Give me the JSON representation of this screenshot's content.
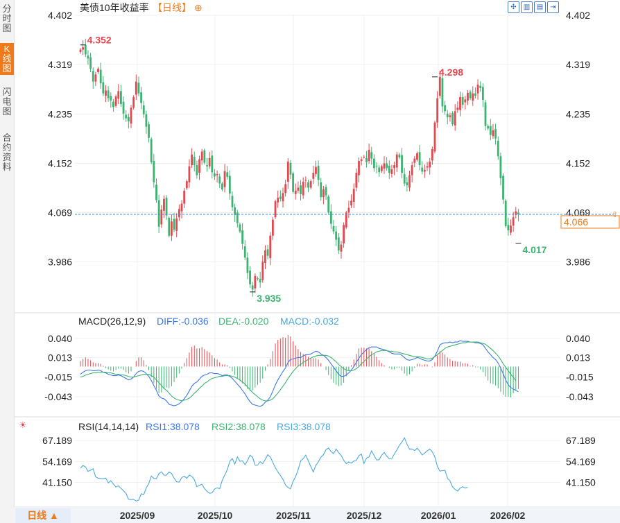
{
  "sidebar": {
    "tabs": [
      {
        "label": "分时图",
        "active": false
      },
      {
        "label": "K线图",
        "active": true
      },
      {
        "label": "闪电图",
        "active": false
      },
      {
        "label": "合约资料",
        "active": false
      }
    ]
  },
  "header": {
    "title": "美债10年收益率",
    "period_tag": "【日线】",
    "add_symbol": "⊕",
    "title_color": "#222222",
    "accent_color": "#f07a1a"
  },
  "toolbar": {
    "icons": [
      "crosshair-icon",
      "bar-style-icon",
      "line-style-icon",
      "forward-icon"
    ]
  },
  "period_button": {
    "label": "日线 ▲"
  },
  "chart_data": [
    {
      "type": "candlestick",
      "title": "美债10年收益率",
      "y_ticks": [
        "4.402",
        "4.319",
        "4.235",
        "4.152",
        "4.069",
        "3.986"
      ],
      "ylim": [
        3.936,
        4.402
      ],
      "x_ticks": [
        "2025/09",
        "2025/10",
        "2025/11",
        "2025/12",
        "2026/01",
        "2026/02"
      ],
      "last_price": "4.066",
      "annotations": [
        {
          "label": "4.352",
          "kind": "high"
        },
        {
          "label": "3.935",
          "kind": "low"
        },
        {
          "label": "4.298",
          "kind": "high"
        },
        {
          "label": "4.017",
          "kind": "low"
        }
      ],
      "up_color": "#e4484f",
      "down_color": "#3cb371",
      "close": [
        4.344,
        4.348,
        4.336,
        4.329,
        4.312,
        4.29,
        4.302,
        4.312,
        4.287,
        4.27,
        4.275,
        4.262,
        4.258,
        4.247,
        4.265,
        4.274,
        4.252,
        4.236,
        4.228,
        4.223,
        4.246,
        4.264,
        4.29,
        4.27,
        4.254,
        4.235,
        4.214,
        4.195,
        4.154,
        4.12,
        4.09,
        4.045,
        4.074,
        4.092,
        4.064,
        4.03,
        4.054,
        4.04,
        4.059,
        4.075,
        4.084,
        4.106,
        4.122,
        4.147,
        4.167,
        4.149,
        4.132,
        4.159,
        4.172,
        4.153,
        4.147,
        4.161,
        4.137,
        4.13,
        4.134,
        4.118,
        4.108,
        4.139,
        4.129,
        4.101,
        4.078,
        4.065,
        4.051,
        4.037,
        4.016,
        3.993,
        3.967,
        3.948,
        3.939,
        3.962,
        3.957,
        3.951,
        3.986,
        4.005,
        3.996,
        4.03,
        4.057,
        4.088,
        4.094,
        4.092,
        4.102,
        4.117,
        4.155,
        4.133,
        4.104,
        4.106,
        4.111,
        4.1,
        4.121,
        4.124,
        4.111,
        4.122,
        4.136,
        4.146,
        4.124,
        4.095,
        4.108,
        4.098,
        4.069,
        4.05,
        4.037,
        4.023,
        4.005,
        4.015,
        4.048,
        4.069,
        4.077,
        4.089,
        4.109,
        4.136,
        4.156,
        4.159,
        4.163,
        4.154,
        4.175,
        4.16,
        4.144,
        4.147,
        4.137,
        4.147,
        4.152,
        4.144,
        4.136,
        4.142,
        4.149,
        4.167,
        4.162,
        4.136,
        4.118,
        4.115,
        4.132,
        4.149,
        4.16,
        4.169,
        4.149,
        4.138,
        4.141,
        4.147,
        4.155,
        4.176,
        4.221,
        4.262,
        4.298,
        4.248,
        4.24,
        4.23,
        4.233,
        4.218,
        4.24,
        4.246,
        4.264,
        4.251,
        4.26,
        4.271,
        4.262,
        4.27,
        4.266,
        4.285,
        4.279,
        4.259,
        4.215,
        4.211,
        4.2,
        4.208,
        4.194,
        4.164,
        4.127,
        4.091,
        4.046,
        4.039,
        4.047,
        4.061,
        4.071,
        4.066
      ]
    },
    {
      "type": "bar+line",
      "title": "MACD(26,12,9)",
      "series": [
        {
          "name": "DIFF:-0.036",
          "color": "#3b78e7"
        },
        {
          "name": "DEA:-0.020",
          "color": "#3cb371"
        },
        {
          "name": "MACD:-0.032",
          "color": "#4aa8e0"
        }
      ],
      "y_ticks": [
        "0.040",
        "0.013",
        "-0.015",
        "-0.043"
      ],
      "ylim": [
        -0.055,
        0.05
      ],
      "diff": [
        -0.011,
        -0.008,
        -0.006,
        -0.005,
        -0.005,
        -0.006,
        -0.006,
        -0.005,
        -0.006,
        -0.008,
        -0.009,
        -0.011,
        -0.012,
        -0.013,
        -0.013,
        -0.012,
        -0.013,
        -0.015,
        -0.017,
        -0.019,
        -0.018,
        -0.015,
        -0.01,
        -0.007,
        -0.006,
        -0.007,
        -0.01,
        -0.014,
        -0.02,
        -0.027,
        -0.034,
        -0.042,
        -0.045,
        -0.046,
        -0.049,
        -0.054,
        -0.055,
        -0.056,
        -0.055,
        -0.053,
        -0.05,
        -0.046,
        -0.041,
        -0.035,
        -0.028,
        -0.024,
        -0.022,
        -0.018,
        -0.014,
        -0.012,
        -0.011,
        -0.009,
        -0.009,
        -0.01,
        -0.01,
        -0.011,
        -0.013,
        -0.012,
        -0.012,
        -0.014,
        -0.017,
        -0.021,
        -0.025,
        -0.029,
        -0.034,
        -0.039,
        -0.045,
        -0.05,
        -0.054,
        -0.055,
        -0.056,
        -0.057,
        -0.055,
        -0.051,
        -0.048,
        -0.043,
        -0.035,
        -0.026,
        -0.019,
        -0.013,
        -0.007,
        -0.002,
        0.006,
        0.01,
        0.011,
        0.012,
        0.013,
        0.013,
        0.015,
        0.017,
        0.017,
        0.018,
        0.02,
        0.022,
        0.021,
        0.018,
        0.016,
        0.013,
        0.009,
        0.004,
        -0.001,
        -0.006,
        -0.011,
        -0.014,
        -0.014,
        -0.012,
        -0.009,
        -0.005,
        0.0,
        0.006,
        0.012,
        0.017,
        0.021,
        0.024,
        0.027,
        0.028,
        0.028,
        0.028,
        0.026,
        0.025,
        0.024,
        0.023,
        0.021,
        0.019,
        0.018,
        0.018,
        0.018,
        0.016,
        0.013,
        0.01,
        0.009,
        0.01,
        0.011,
        0.013,
        0.012,
        0.01,
        0.009,
        0.008,
        0.008,
        0.01,
        0.015,
        0.022,
        0.031,
        0.033,
        0.034,
        0.034,
        0.035,
        0.034,
        0.035,
        0.035,
        0.037,
        0.036,
        0.036,
        0.036,
        0.035,
        0.035,
        0.034,
        0.034,
        0.033,
        0.031,
        0.026,
        0.021,
        0.017,
        0.013,
        0.01,
        0.005,
        -0.002,
        -0.01,
        -0.019,
        -0.026,
        -0.03,
        -0.032,
        -0.034,
        -0.036
      ],
      "dea": [
        -0.015,
        -0.014,
        -0.012,
        -0.011,
        -0.01,
        -0.009,
        -0.009,
        -0.008,
        -0.008,
        -0.008,
        -0.008,
        -0.009,
        -0.009,
        -0.01,
        -0.011,
        -0.011,
        -0.012,
        -0.012,
        -0.013,
        -0.014,
        -0.015,
        -0.015,
        -0.014,
        -0.013,
        -0.012,
        -0.011,
        -0.011,
        -0.011,
        -0.013,
        -0.015,
        -0.019,
        -0.023,
        -0.027,
        -0.031,
        -0.034,
        -0.038,
        -0.042,
        -0.045,
        -0.047,
        -0.048,
        -0.049,
        -0.048,
        -0.047,
        -0.045,
        -0.042,
        -0.038,
        -0.035,
        -0.031,
        -0.028,
        -0.024,
        -0.022,
        -0.019,
        -0.017,
        -0.016,
        -0.015,
        -0.014,
        -0.014,
        -0.013,
        -0.013,
        -0.013,
        -0.014,
        -0.015,
        -0.017,
        -0.019,
        -0.022,
        -0.025,
        -0.029,
        -0.033,
        -0.037,
        -0.04,
        -0.043,
        -0.046,
        -0.048,
        -0.049,
        -0.049,
        -0.048,
        -0.046,
        -0.042,
        -0.038,
        -0.033,
        -0.028,
        -0.023,
        -0.017,
        -0.012,
        -0.007,
        -0.003,
        0.001,
        0.003,
        0.006,
        0.008,
        0.01,
        0.012,
        0.014,
        0.015,
        0.016,
        0.016,
        0.016,
        0.016,
        0.015,
        0.013,
        0.01,
        0.007,
        0.003,
        -0.0,
        -0.003,
        -0.005,
        -0.006,
        -0.006,
        -0.005,
        -0.003,
        -0.0,
        0.004,
        0.007,
        0.011,
        0.014,
        0.017,
        0.019,
        0.021,
        0.022,
        0.023,
        0.023,
        0.023,
        0.022,
        0.022,
        0.021,
        0.021,
        0.02,
        0.019,
        0.018,
        0.017,
        0.016,
        0.015,
        0.014,
        0.014,
        0.014,
        0.013,
        0.012,
        0.011,
        0.011,
        0.012,
        0.014,
        0.017,
        0.02,
        0.023,
        0.026,
        0.028,
        0.029,
        0.03,
        0.031,
        0.032,
        0.033,
        0.034,
        0.034,
        0.035,
        0.035,
        0.035,
        0.035,
        0.035,
        0.034,
        0.033,
        0.032,
        0.029,
        0.026,
        0.023,
        0.019,
        0.015,
        0.01,
        0.004,
        -0.001,
        -0.006,
        -0.011,
        -0.015,
        -0.02
      ],
      "macd": [
        0.008,
        0.011,
        0.013,
        0.011,
        0.009,
        0.006,
        0.005,
        0.005,
        0.004,
        0.001,
        -0.002,
        -0.004,
        -0.006,
        -0.007,
        -0.005,
        -0.003,
        -0.003,
        -0.005,
        -0.008,
        -0.01,
        -0.007,
        0.0,
        0.008,
        0.013,
        0.013,
        0.009,
        0.002,
        -0.005,
        -0.015,
        -0.024,
        -0.032,
        -0.038,
        -0.037,
        -0.032,
        -0.03,
        -0.031,
        -0.028,
        -0.022,
        -0.016,
        -0.01,
        -0.003,
        0.005,
        0.012,
        0.02,
        0.028,
        0.03,
        0.026,
        0.026,
        0.028,
        0.025,
        0.022,
        0.02,
        0.016,
        0.012,
        0.01,
        0.006,
        0.003,
        0.003,
        0.002,
        -0.002,
        -0.007,
        -0.012,
        -0.017,
        -0.021,
        -0.024,
        -0.028,
        -0.032,
        -0.035,
        -0.034,
        -0.03,
        -0.026,
        -0.023,
        -0.017,
        -0.006,
        0.003,
        0.011,
        0.022,
        0.033,
        0.038,
        0.04,
        0.042,
        0.041,
        0.045,
        0.043,
        0.036,
        0.03,
        0.025,
        0.021,
        0.018,
        0.017,
        0.014,
        0.012,
        0.012,
        0.012,
        0.01,
        0.005,
        0.0,
        -0.005,
        -0.012,
        -0.018,
        -0.023,
        -0.026,
        -0.028,
        -0.027,
        -0.023,
        -0.014,
        -0.006,
        0.002,
        0.01,
        0.018,
        0.026,
        0.027,
        0.027,
        0.026,
        0.026,
        0.022,
        0.018,
        0.014,
        0.009,
        0.005,
        0.002,
        0.0,
        -0.002,
        -0.004,
        -0.004,
        -0.002,
        -0.002,
        -0.006,
        -0.01,
        -0.013,
        -0.011,
        -0.007,
        -0.002,
        0.004,
        0.004,
        0.002,
        0.003,
        0.003,
        0.0,
        -0.001,
        0.006,
        0.016,
        0.022,
        0.02,
        0.017,
        0.013,
        0.011,
        0.008,
        0.008,
        0.007,
        0.007,
        0.005,
        0.005,
        0.004,
        0.001,
        0.002,
        -0.001,
        -0.001,
        -0.004,
        -0.008,
        -0.014,
        -0.02,
        -0.024,
        -0.025,
        -0.027,
        -0.031,
        -0.036,
        -0.04,
        -0.043,
        -0.043,
        -0.044,
        -0.038,
        -0.034,
        -0.032
      ]
    },
    {
      "type": "line",
      "title": "RSI(14,14,14)",
      "series": [
        {
          "name": "RSI1:38.078",
          "color": "#3b78e7"
        },
        {
          "name": "RSI2:38.078",
          "color": "#3cb371"
        },
        {
          "name": "RSI3:38.078",
          "color": "#4aa8e0"
        }
      ],
      "y_ticks": [
        "67.189",
        "54.169",
        "41.150"
      ],
      "ylim": [
        28,
        72
      ],
      "rsi": [
        50.0,
        51.7,
        50.8,
        48.0,
        48.8,
        49.6,
        44.6,
        43.8,
        43.5,
        43.5,
        43.9,
        40.9,
        42.2,
        40.2,
        38.3,
        39.0,
        37.5,
        36.0,
        34.3,
        30.7,
        30.5,
        30.6,
        29.6,
        30.1,
        34.1,
        33.7,
        37.8,
        40.6,
        45.1,
        43.6,
        43.5,
        46.6,
        47.8,
        45.7,
        45.7,
        47.7,
        46.7,
        43.8,
        41.5,
        41.4,
        44.1,
        45.1,
        43.7,
        45.7,
        44.9,
        42.8,
        38.5,
        39.4,
        40.0,
        37.3,
        35.6,
        34.4,
        34.7,
        37.1,
        37.8,
        37.3,
        42.4,
        45.7,
        49.0,
        54.3,
        56.0,
        52.5,
        57.0,
        54.3,
        54.6,
        52.2,
        54.7,
        58.1,
        56.8,
        51.9,
        52.0,
        54.0,
        52.9,
        55.4,
        58.4,
        57.0,
        53.6,
        50.3,
        47.6,
        45.5,
        43.0,
        39.6,
        38.0,
        37.2,
        41.8,
        44.8,
        49.1,
        54.6,
        55.9,
        58.1,
        54.7,
        51.1,
        47.7,
        51.8,
        54.0,
        56.9,
        58.4,
        61.6,
        62.5,
        60.4,
        59.1,
        61.9,
        59.7,
        58.0,
        55.0,
        52.8,
        53.9,
        53.2,
        54.5,
        54.9,
        57.8,
        58.8,
        52.9,
        56.3,
        57.0,
        60.8,
        58.0,
        55.1,
        55.3,
        58.1,
        59.8,
        57.5,
        55.9,
        56.1,
        58.8,
        61.4,
        64.3,
        66.2,
        68.9,
        65.0,
        61.8,
        62.0,
        60.9,
        62.4,
        60.6,
        58.2,
        59.4,
        60.8,
        61.9,
        60.2,
        57.0,
        51.2,
        48.2,
        48.5,
        48.7,
        43.7,
        42.1,
        38.4,
        36.8,
        35.8,
        37.6,
        38.5,
        37.6,
        38.1
      ]
    }
  ]
}
